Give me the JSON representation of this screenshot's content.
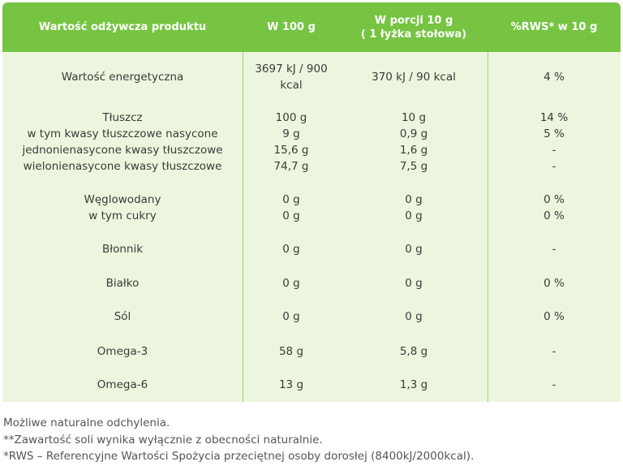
{
  "table": {
    "headers": [
      "Wartość odżywcza produktu",
      "W 100 g",
      "W porcji 10 g\n( 1 łyżka stołowa)",
      "%RWS* w 10 g"
    ],
    "groups": [
      {
        "name": "Wartość energetyczna",
        "per100": "3697 kJ / 900\nkcal",
        "portion": "370 kJ / 90 kcal",
        "rws": "4 %"
      },
      {
        "name": "Tłuszcz\nw tym kwasy tłuszczowe nasycone\njednonienasycone kwasy tłuszczowe\nwielonienasycone kwasy tłuszczowe",
        "per100": "100 g\n9 g\n15,6 g\n74,7 g",
        "portion": "10 g\n0,9 g\n1,6 g\n7,5 g",
        "rws": "14 %\n5 %\n-\n-"
      },
      {
        "name": "Węglowodany\nw tym cukry",
        "per100": "0 g\n0 g",
        "portion": "0 g\n0 g",
        "rws": "0 %\n0 %"
      },
      {
        "name": "Błonnik",
        "per100": "0 g",
        "portion": "0 g",
        "rws": "-"
      },
      {
        "name": "Białko",
        "per100": "0 g",
        "portion": "0 g",
        "rws": "0 %"
      },
      {
        "name": "Sól",
        "per100": "0 g",
        "portion": "0 g",
        "rws": "0 %"
      },
      {
        "name": "Omega-3",
        "per100": "58 g",
        "portion": "5,8 g",
        "rws": "-"
      },
      {
        "name": "Omega-6",
        "per100": "13 g",
        "portion": "1,3 g",
        "rws": "-"
      }
    ]
  },
  "footnotes": [
    "Możliwe naturalne odchylenia.",
    "**Zawartość soli wynika wyłącznie z obecności naturalnie.",
    "*RWS – Referencyjne Wartości Spożycia przeciętnej osoby dorosłej (8400kJ/2000kcal)."
  ],
  "colors": {
    "header_bg": "#76c442",
    "body_bg": "#ecf6de",
    "divider": "#9fd37a"
  }
}
